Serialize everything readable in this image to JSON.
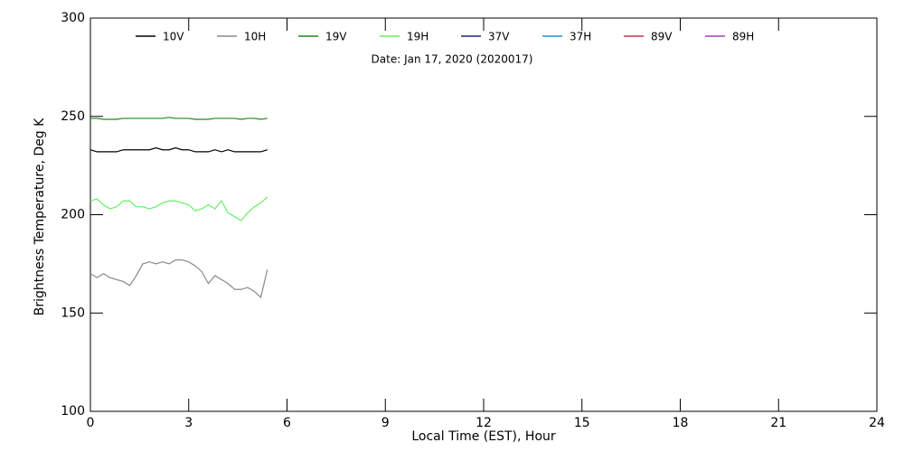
{
  "chart_data": {
    "type": "line",
    "subtitle": "Date: Jan 17, 2020 (2020017)",
    "xlabel": "Local Time (EST), Hour",
    "ylabel": "Brightness Temperature, Deg K",
    "x": [
      0,
      0.2,
      0.4,
      0.6,
      0.8,
      1.0,
      1.2,
      1.4,
      1.6,
      1.8,
      2.0,
      2.2,
      2.4,
      2.6,
      2.8,
      3.0,
      3.2,
      3.4,
      3.6,
      3.8,
      4.0,
      4.2,
      4.4,
      4.6,
      4.8,
      5.0,
      5.2,
      5.4
    ],
    "series": [
      {
        "name": "10V",
        "color": "#000000",
        "values": [
          233,
          232,
          232,
          232,
          232,
          233,
          233,
          233,
          233,
          233,
          234,
          233,
          233,
          234,
          233,
          233,
          232,
          232,
          232,
          233,
          232,
          233,
          232,
          232,
          232,
          232,
          232,
          233
        ]
      },
      {
        "name": "10H",
        "color": "#888888",
        "values": [
          170,
          168,
          170,
          168,
          167,
          166,
          164,
          169,
          175,
          176,
          175,
          176,
          175,
          177,
          177,
          176,
          174,
          171,
          165,
          169,
          167,
          165,
          162,
          162,
          163,
          161,
          158,
          172
        ]
      },
      {
        "name": "19V",
        "color": "#1a8c1a",
        "values": [
          249,
          249,
          248.5,
          248.5,
          248.5,
          249,
          249,
          249,
          249,
          249,
          249,
          249,
          249.5,
          249,
          249,
          249,
          248.5,
          248.5,
          248.5,
          249,
          249,
          249,
          249,
          248.5,
          249,
          249,
          248.5,
          249
        ]
      },
      {
        "name": "19H",
        "color": "#66ee66",
        "values": [
          207,
          208,
          205,
          203,
          204,
          207,
          207,
          204,
          204,
          203,
          204,
          206,
          207,
          207,
          206,
          205,
          202,
          203,
          205,
          203,
          207,
          201,
          199,
          197,
          201,
          204,
          206,
          209
        ]
      },
      {
        "name": "37V",
        "color": "#222288",
        "values": [
          null,
          null,
          null,
          null,
          null,
          null,
          null,
          null,
          null,
          null,
          null,
          null,
          null,
          null,
          null,
          null,
          null,
          null,
          null,
          null,
          null,
          null,
          null,
          null,
          null,
          null,
          null,
          null
        ]
      },
      {
        "name": "37H",
        "color": "#2090d0",
        "values": [
          null,
          null,
          null,
          null,
          null,
          null,
          null,
          null,
          null,
          null,
          null,
          null,
          null,
          null,
          null,
          null,
          null,
          null,
          null,
          null,
          null,
          null,
          null,
          null,
          null,
          null,
          null,
          null
        ]
      },
      {
        "name": "89V",
        "color": "#c03050",
        "values": [
          null,
          null,
          null,
          null,
          null,
          null,
          null,
          null,
          null,
          null,
          null,
          null,
          null,
          null,
          null,
          null,
          null,
          null,
          null,
          null,
          null,
          null,
          null,
          null,
          null,
          null,
          null,
          null
        ]
      },
      {
        "name": "89H",
        "color": "#a040c0",
        "values": [
          null,
          null,
          null,
          null,
          null,
          null,
          null,
          null,
          null,
          null,
          null,
          null,
          null,
          null,
          null,
          null,
          null,
          null,
          null,
          null,
          null,
          null,
          null,
          null,
          null,
          null,
          null,
          null
        ]
      }
    ],
    "xlim": [
      0,
      24
    ],
    "xticks": [
      0,
      3,
      6,
      9,
      12,
      15,
      18,
      21,
      24
    ],
    "ylim": [
      100,
      300
    ],
    "yticks": [
      100,
      150,
      200,
      250,
      300
    ]
  }
}
